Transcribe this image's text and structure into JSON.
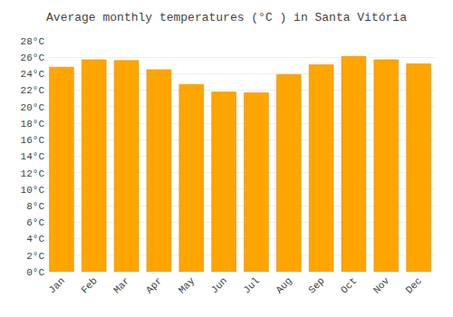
{
  "chart_data": {
    "type": "bar",
    "title": "Average monthly temperatures (°C ) in Santa Vitória",
    "categories": [
      "Jan",
      "Feb",
      "Mar",
      "Apr",
      "May",
      "Jun",
      "Jul",
      "Aug",
      "Sep",
      "Oct",
      "Nov",
      "Dec"
    ],
    "values": [
      24.8,
      25.7,
      25.6,
      24.5,
      22.7,
      21.8,
      21.7,
      23.9,
      25.1,
      26.1,
      25.7,
      25.2
    ],
    "color": "#FFA500",
    "ylim": [
      0,
      28
    ],
    "yticks": [
      {
        "value": 0,
        "label": "0°C"
      },
      {
        "value": 2,
        "label": "2°C"
      },
      {
        "value": 4,
        "label": "4°C"
      },
      {
        "value": 6,
        "label": "6°C"
      },
      {
        "value": 8,
        "label": "8°C"
      },
      {
        "value": 10,
        "label": "10°C"
      },
      {
        "value": 12,
        "label": "12°C"
      },
      {
        "value": 14,
        "label": "14°C"
      },
      {
        "value": 16,
        "label": "16°C"
      },
      {
        "value": 18,
        "label": "18°C"
      },
      {
        "value": 20,
        "label": "20°C"
      },
      {
        "value": 22,
        "label": "22°C"
      },
      {
        "value": 24,
        "label": "24°C"
      },
      {
        "value": 26,
        "label": "26°C"
      },
      {
        "value": 28,
        "label": "28°C"
      }
    ],
    "grid": true
  }
}
